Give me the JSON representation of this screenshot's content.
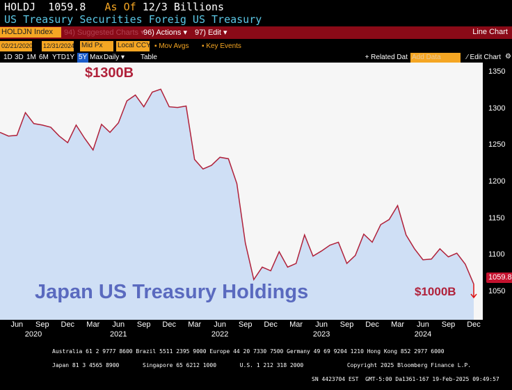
{
  "header": {
    "ticker": "HOLDJ",
    "value": "1059.8",
    "as_of_label": "As Of",
    "as_of": "12/3",
    "units": "Billions",
    "subtitle": "US Treasury Securities Foreig US Treasury"
  },
  "toolbar": {
    "security": "HOLDJN Index",
    "suggested": "94) Suggested Charts ▾",
    "actions": "96) Actions ▾",
    "edit": "97) Edit ▾",
    "chart_type": "Line Chart"
  },
  "controls": {
    "start_date": "02/21/2020",
    "end_date": "12/31/2024",
    "price": "Mid Px",
    "currency": "Local CCY",
    "mov_avgs": "Mov Avgs",
    "key_events": "Key Events"
  },
  "periods": [
    "1D",
    "3D",
    "1M",
    "6M",
    "YTD",
    "1Y",
    "5Y",
    "Max",
    "Daily ▾",
    "Table"
  ],
  "active_period": "5Y",
  "right_tools": {
    "related": "+ Related Dat",
    "add_data_placeholder": "Add Data",
    "edit_chart": "⁄ Edit Chart"
  },
  "annotations": {
    "top": "$1300B",
    "bottom": "$1000B",
    "title": "Japan US Treasury Holdings",
    "last_value": "1059.8"
  },
  "colors": {
    "line": "#b0213a",
    "fill": "#cfdff5",
    "bg": "#f6f6f6",
    "toolbar": "#8a0a17",
    "accent": "#f5a623"
  },
  "chart_data": {
    "type": "area",
    "start": "2020-04",
    "frequency": "monthly",
    "ylim": [
      1010,
      1360
    ],
    "yticks": [
      1050,
      1100,
      1150,
      1200,
      1250,
      1300,
      1350
    ],
    "values": [
      1267,
      1262,
      1263,
      1294,
      1279,
      1277,
      1274,
      1262,
      1253,
      1277,
      1259,
      1243,
      1278,
      1267,
      1280,
      1310,
      1318,
      1302,
      1322,
      1326,
      1302,
      1301,
      1303,
      1230,
      1217,
      1222,
      1233,
      1231,
      1197,
      1116,
      1066,
      1083,
      1078,
      1104,
      1083,
      1088,
      1127,
      1098,
      1105,
      1113,
      1117,
      1088,
      1099,
      1128,
      1117,
      1141,
      1148,
      1167,
      1127,
      1108,
      1093,
      1094,
      1108,
      1097,
      1102,
      1087,
      1059.8
    ],
    "xticks": [
      "Jun",
      "Sep",
      "Dec",
      "Mar",
      "Jun",
      "Sep",
      "Dec",
      "Mar",
      "Jun",
      "Sep",
      "Dec",
      "Mar",
      "Jun",
      "Sep",
      "Dec",
      "Mar",
      "Jun",
      "Sep",
      "Dec"
    ],
    "years": [
      "2020",
      "2021",
      "2022",
      "2023",
      "2024"
    ]
  },
  "footer": {
    "line1": "Australia 61 2 9777 8600 Brazil 5511 2395 9000 Europe 44 20 7330 7500 Germany 49 69 9204 1210 Hong Kong 852 2977 6000",
    "line2": "Japan 81 3 4565 8900       Singapore 65 6212 1000       U.S. 1 212 318 2000             Copyright 2025 Bloomberg Finance L.P.",
    "line3": "SN 4423704 EST  GMT-5:00 Da1361-167 19-Feb-2025 09:49:57"
  }
}
